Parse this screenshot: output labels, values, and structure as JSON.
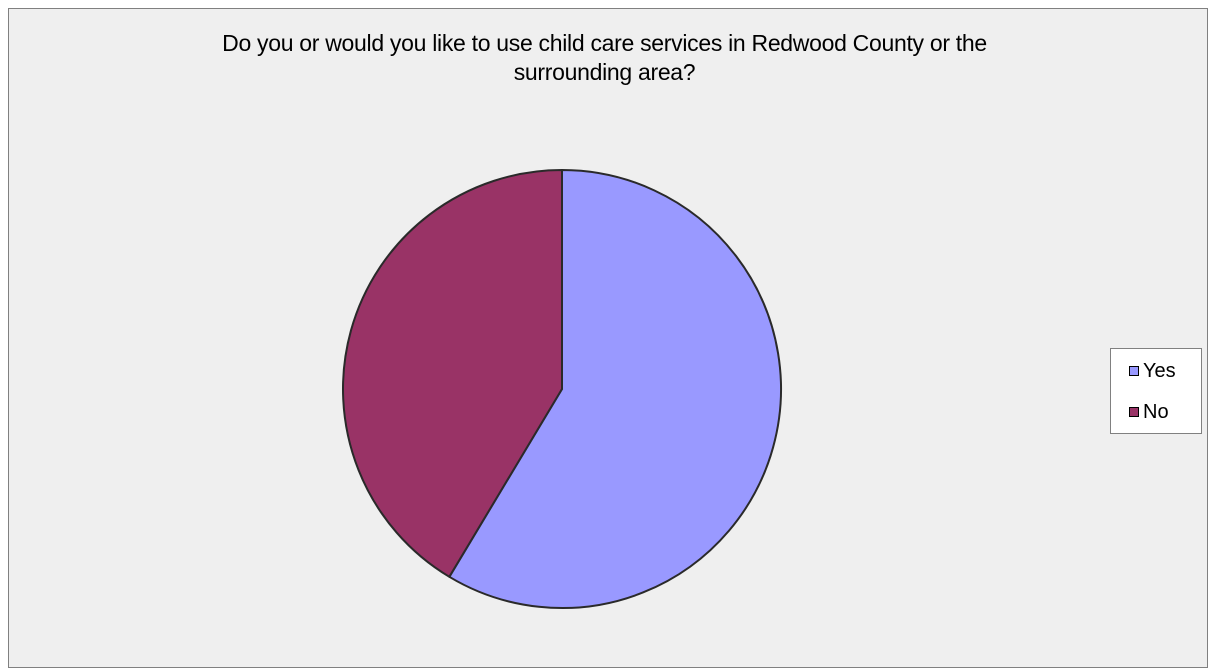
{
  "chart_data": {
    "type": "pie",
    "title_lines": [
      "Do you or would you like to use child care services in Redwood County or the",
      "surrounding area?"
    ],
    "slices": [
      {
        "label": "Yes",
        "value": 58.6,
        "color": "#9999ff"
      },
      {
        "label": "No",
        "value": 41.4,
        "color": "#993366"
      }
    ],
    "legend_placement": "right"
  }
}
